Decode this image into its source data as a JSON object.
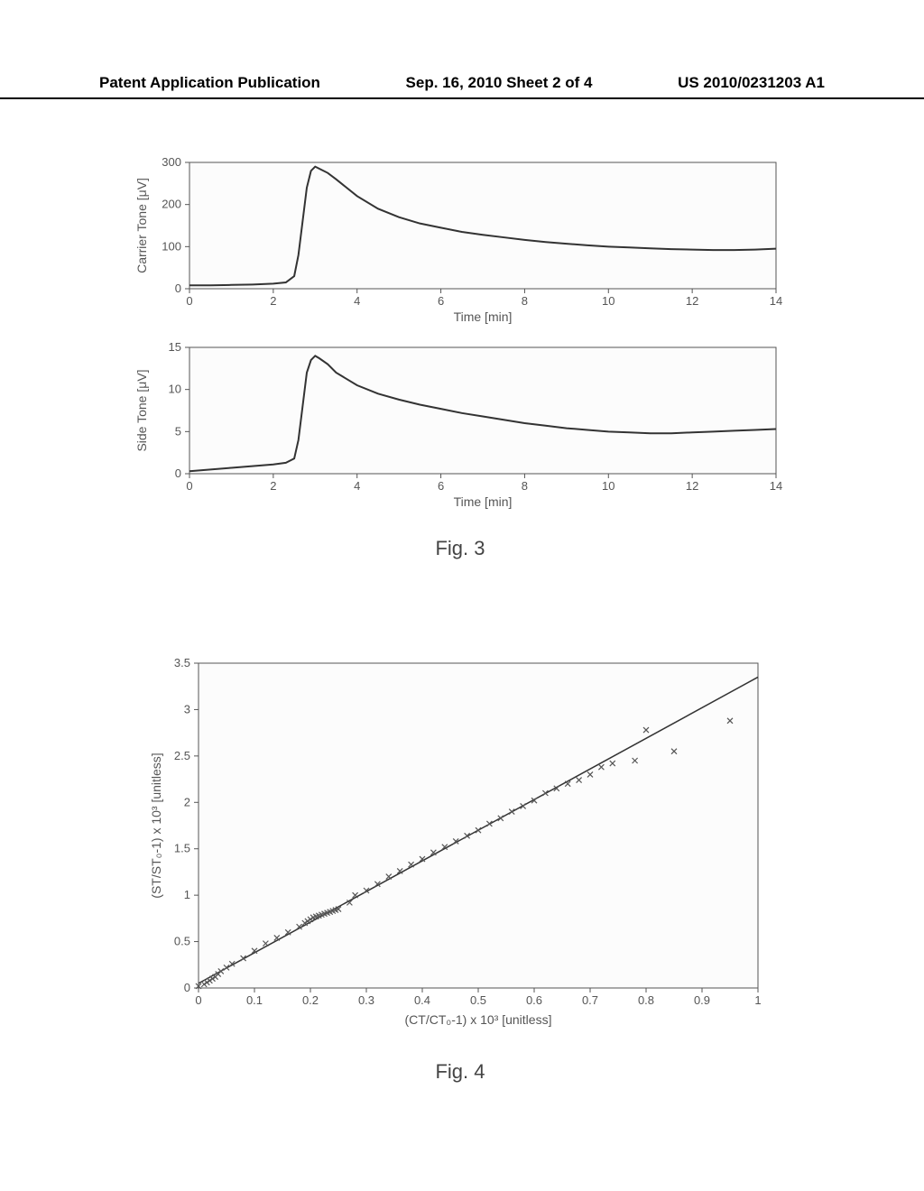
{
  "header": {
    "left": "Patent Application Publication",
    "center": "Sep. 16, 2010  Sheet 2 of 4",
    "right": "US 2010/0231203 A1"
  },
  "fig3": {
    "caption": "Fig. 3",
    "top_chart": {
      "type": "line",
      "xlabel": "Time [min]",
      "ylabel": "Carrier Tone [μV]",
      "xlim": [
        0,
        14
      ],
      "ylim": [
        0,
        300
      ],
      "xticks": [
        0,
        2,
        4,
        6,
        8,
        10,
        12,
        14
      ],
      "yticks": [
        0,
        100,
        200,
        300
      ],
      "line_color": "#333333",
      "line_width": 2,
      "background_color": "#fcfcfc",
      "axis_color": "#555555",
      "data": [
        [
          0,
          8
        ],
        [
          0.5,
          8
        ],
        [
          1,
          9
        ],
        [
          1.5,
          10
        ],
        [
          2,
          12
        ],
        [
          2.3,
          15
        ],
        [
          2.5,
          30
        ],
        [
          2.6,
          80
        ],
        [
          2.7,
          160
        ],
        [
          2.8,
          240
        ],
        [
          2.9,
          280
        ],
        [
          3,
          290
        ],
        [
          3.1,
          285
        ],
        [
          3.3,
          275
        ],
        [
          3.5,
          260
        ],
        [
          4,
          220
        ],
        [
          4.5,
          190
        ],
        [
          5,
          170
        ],
        [
          5.5,
          155
        ],
        [
          6,
          145
        ],
        [
          6.5,
          135
        ],
        [
          7,
          128
        ],
        [
          7.5,
          122
        ],
        [
          8,
          116
        ],
        [
          8.5,
          111
        ],
        [
          9,
          107
        ],
        [
          9.5,
          103
        ],
        [
          10,
          100
        ],
        [
          10.5,
          98
        ],
        [
          11,
          96
        ],
        [
          11.5,
          94
        ],
        [
          12,
          93
        ],
        [
          12.5,
          92
        ],
        [
          13,
          92
        ],
        [
          13.5,
          93
        ],
        [
          14,
          95
        ]
      ]
    },
    "bottom_chart": {
      "type": "line",
      "xlabel": "Time [min]",
      "ylabel": "Side Tone [μV]",
      "xlim": [
        0,
        14
      ],
      "ylim": [
        0,
        15
      ],
      "xticks": [
        0,
        2,
        4,
        6,
        8,
        10,
        12,
        14
      ],
      "yticks": [
        0,
        5,
        10,
        15
      ],
      "line_color": "#333333",
      "line_width": 2,
      "background_color": "#fcfcfc",
      "axis_color": "#555555",
      "data": [
        [
          0,
          0.3
        ],
        [
          0.5,
          0.5
        ],
        [
          1,
          0.7
        ],
        [
          1.5,
          0.9
        ],
        [
          2,
          1.1
        ],
        [
          2.3,
          1.3
        ],
        [
          2.5,
          1.8
        ],
        [
          2.6,
          4
        ],
        [
          2.7,
          8
        ],
        [
          2.8,
          12
        ],
        [
          2.9,
          13.5
        ],
        [
          3,
          14
        ],
        [
          3.1,
          13.7
        ],
        [
          3.3,
          13
        ],
        [
          3.5,
          12
        ],
        [
          4,
          10.5
        ],
        [
          4.5,
          9.5
        ],
        [
          5,
          8.8
        ],
        [
          5.5,
          8.2
        ],
        [
          6,
          7.7
        ],
        [
          6.5,
          7.2
        ],
        [
          7,
          6.8
        ],
        [
          7.5,
          6.4
        ],
        [
          8,
          6.0
        ],
        [
          8.5,
          5.7
        ],
        [
          9,
          5.4
        ],
        [
          9.5,
          5.2
        ],
        [
          10,
          5.0
        ],
        [
          10.5,
          4.9
        ],
        [
          11,
          4.8
        ],
        [
          11.5,
          4.8
        ],
        [
          12,
          4.9
        ],
        [
          12.5,
          5.0
        ],
        [
          13,
          5.1
        ],
        [
          13.5,
          5.2
        ],
        [
          14,
          5.3
        ]
      ]
    }
  },
  "fig4": {
    "caption": "Fig. 4",
    "type": "scatter",
    "xlabel": "(CT/CT₀-1) x 10³ [unitless]",
    "ylabel": "(ST/ST₀-1) x 10³ [unitless]",
    "xlim": [
      0,
      1
    ],
    "ylim": [
      0,
      3.5
    ],
    "xticks": [
      0,
      0.1,
      0.2,
      0.3,
      0.4,
      0.5,
      0.6,
      0.7,
      0.8,
      0.9,
      1
    ],
    "yticks": [
      0,
      0.5,
      1,
      1.5,
      2,
      2.5,
      3,
      3.5
    ],
    "marker_color": "#555555",
    "line_color": "#333333",
    "line_width": 1.5,
    "background_color": "#fcfcfc",
    "axis_color": "#555555",
    "fit_line": [
      [
        0,
        0.05
      ],
      [
        1,
        3.35
      ]
    ],
    "points": [
      [
        0.0,
        0.02
      ],
      [
        0.01,
        0.04
      ],
      [
        0.015,
        0.06
      ],
      [
        0.02,
        0.08
      ],
      [
        0.025,
        0.1
      ],
      [
        0.03,
        0.12
      ],
      [
        0.035,
        0.15
      ],
      [
        0.04,
        0.18
      ],
      [
        0.05,
        0.22
      ],
      [
        0.06,
        0.26
      ],
      [
        0.08,
        0.32
      ],
      [
        0.1,
        0.4
      ],
      [
        0.12,
        0.48
      ],
      [
        0.14,
        0.54
      ],
      [
        0.16,
        0.6
      ],
      [
        0.18,
        0.66
      ],
      [
        0.19,
        0.7
      ],
      [
        0.195,
        0.72
      ],
      [
        0.2,
        0.74
      ],
      [
        0.205,
        0.76
      ],
      [
        0.21,
        0.77
      ],
      [
        0.215,
        0.78
      ],
      [
        0.22,
        0.79
      ],
      [
        0.225,
        0.8
      ],
      [
        0.23,
        0.81
      ],
      [
        0.235,
        0.82
      ],
      [
        0.24,
        0.83
      ],
      [
        0.245,
        0.84
      ],
      [
        0.25,
        0.85
      ],
      [
        0.27,
        0.92
      ],
      [
        0.28,
        1.0
      ],
      [
        0.3,
        1.05
      ],
      [
        0.32,
        1.12
      ],
      [
        0.34,
        1.2
      ],
      [
        0.36,
        1.26
      ],
      [
        0.38,
        1.33
      ],
      [
        0.4,
        1.39
      ],
      [
        0.42,
        1.46
      ],
      [
        0.44,
        1.52
      ],
      [
        0.46,
        1.58
      ],
      [
        0.48,
        1.64
      ],
      [
        0.5,
        1.7
      ],
      [
        0.52,
        1.77
      ],
      [
        0.54,
        1.83
      ],
      [
        0.56,
        1.9
      ],
      [
        0.58,
        1.96
      ],
      [
        0.6,
        2.02
      ],
      [
        0.62,
        2.1
      ],
      [
        0.64,
        2.15
      ],
      [
        0.66,
        2.2
      ],
      [
        0.68,
        2.24
      ],
      [
        0.7,
        2.3
      ],
      [
        0.72,
        2.38
      ],
      [
        0.74,
        2.42
      ],
      [
        0.78,
        2.45
      ],
      [
        0.8,
        2.78
      ],
      [
        0.85,
        2.55
      ],
      [
        0.95,
        2.88
      ]
    ]
  }
}
